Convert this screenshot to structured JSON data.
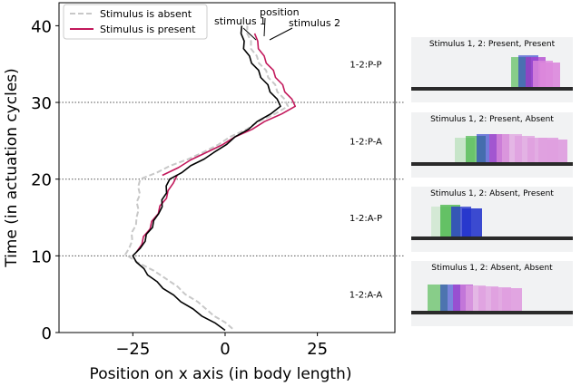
{
  "chart_data": {
    "type": "line",
    "xlabel": "Position on x axis (in body length)",
    "ylabel": "Time (in actuation cycles)",
    "xlim": [
      -45,
      46
    ],
    "ylim": [
      0,
      43
    ],
    "xticks": [
      -25,
      0,
      25
    ],
    "yticks": [
      0,
      10,
      20,
      30,
      40
    ],
    "legend": {
      "position": "top-left",
      "entries": [
        "Stimulus is absent",
        "Stimulus is present"
      ]
    },
    "colors": {
      "absent": "#c8c8c8",
      "present": "#c2185b",
      "position": "#000000"
    },
    "phase_lines": [
      10,
      20,
      30
    ],
    "phase_labels": [
      {
        "label": "1-2:A-A",
        "y": 5
      },
      {
        "label": "1-2:A-P",
        "y": 15
      },
      {
        "label": "1-2:P-A",
        "y": 25
      },
      {
        "label": "1-2:P-P",
        "y": 35
      }
    ],
    "series": [
      {
        "name": "Stimulus is absent",
        "style": "dashed",
        "points": [
          [
            2,
            0.5
          ],
          [
            -5,
            3
          ],
          [
            -16,
            7
          ],
          [
            -27,
            10.2
          ],
          [
            -26,
            11
          ],
          [
            -24,
            15
          ],
          [
            -23,
            20
          ],
          [
            -6,
            23.5
          ],
          [
            17,
            29.5
          ],
          [
            7,
            37
          ],
          [
            6,
            40
          ]
        ]
      },
      {
        "name": "Stimulus is present",
        "points": [
          [
            -17,
            20.5
          ],
          [
            -5,
            23.5
          ],
          [
            19,
            29.5
          ],
          [
            9,
            37
          ],
          [
            8,
            39
          ]
        ]
      },
      {
        "name": "Stimulus is present",
        "points": [
          [
            -24,
            10.5
          ],
          [
            -14,
            19.5
          ],
          [
            -13,
            20.5
          ]
        ]
      },
      {
        "name": "position",
        "points": [
          [
            0,
            0.3
          ],
          [
            -12,
            4
          ],
          [
            -21,
            7.5
          ],
          [
            -25,
            10
          ],
          [
            -23,
            11
          ],
          [
            -18,
            15.5
          ],
          [
            -15,
            20
          ],
          [
            -3,
            23.5
          ],
          [
            15,
            29.5
          ],
          [
            5,
            37
          ],
          [
            4.5,
            40
          ]
        ]
      }
    ],
    "annotations": [
      {
        "text": "stimulus 1",
        "x": 5,
        "y": 40
      },
      {
        "text": "position",
        "x": 7,
        "y": 40
      },
      {
        "text": "stimulus 2",
        "x": 10,
        "y": 40
      }
    ]
  },
  "panels": [
    {
      "title": "Stimulus 1, 2: Present, Present",
      "robot_colors": [
        "#22aa22",
        "#2233cc",
        "#aa33cc",
        "#dd88dd"
      ]
    },
    {
      "title": "Stimulus 1, 2: Present, Absent",
      "robot_colors": [
        "#9fd9a0",
        "#22aa22",
        "#2233cc",
        "#bb44cc",
        "#e0a0e0"
      ]
    },
    {
      "title": "Stimulus 1, 2: Absent, Present",
      "robot_colors": [
        "#b9e2b9",
        "#22aa22",
        "#2233cc"
      ]
    },
    {
      "title": "Stimulus 1, 2: Absent, Absent",
      "robot_colors": [
        "#22aa22",
        "#2233cc",
        "#aa33cc",
        "#e0a0e0"
      ]
    }
  ]
}
